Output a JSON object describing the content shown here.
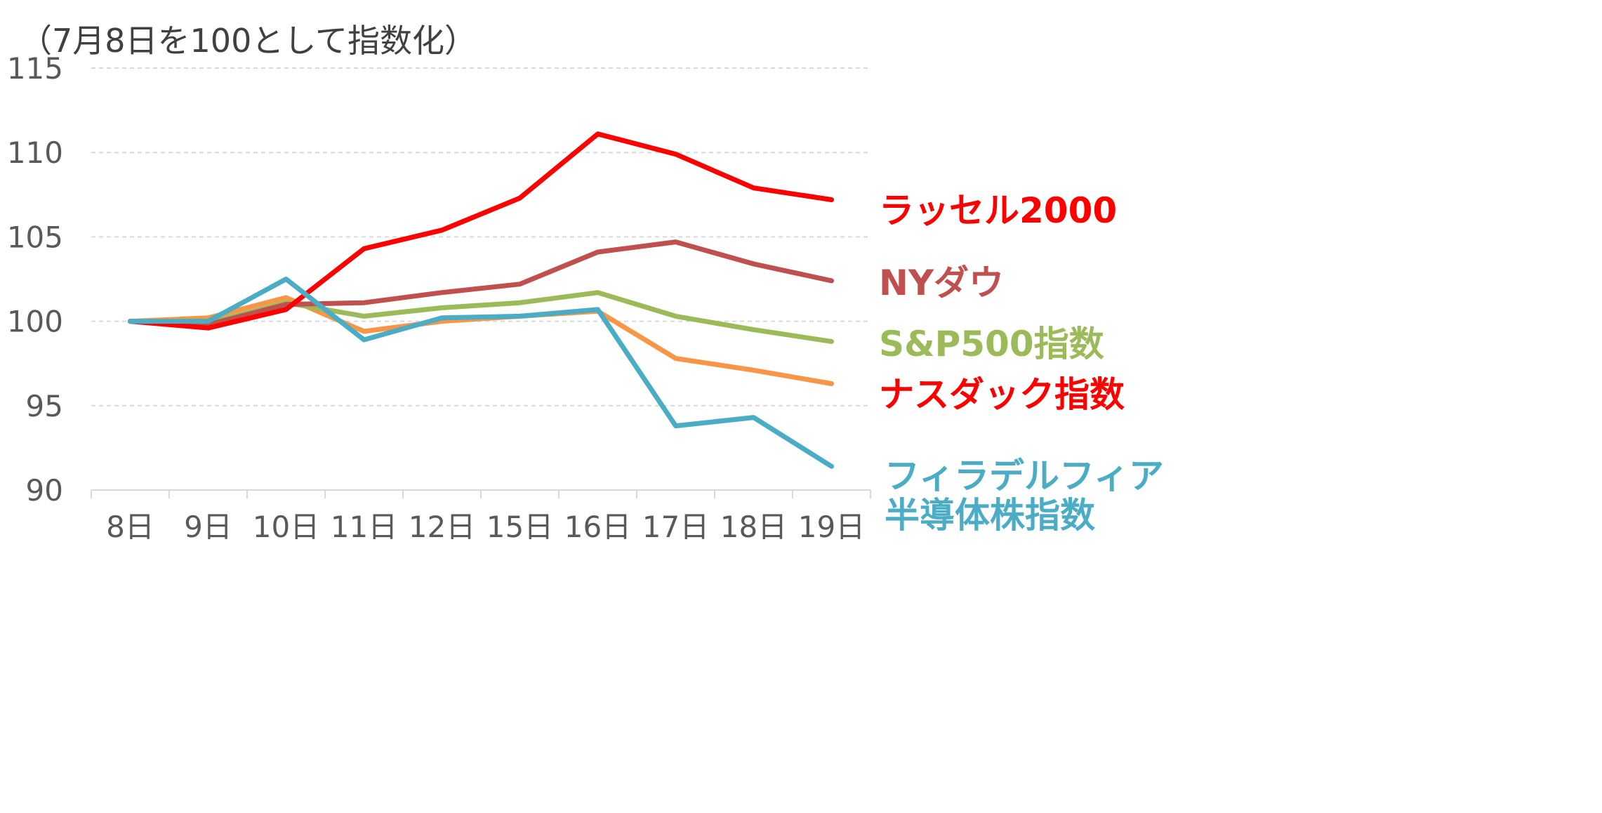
{
  "chart_data": {
    "type": "line",
    "title": "",
    "ylabel": "（7月8日を100として指数化）",
    "xlabel": "",
    "categories": [
      "8日",
      "9日",
      "10日",
      "11日",
      "12日",
      "15日",
      "16日",
      "17日",
      "18日",
      "19日"
    ],
    "ylim": [
      90,
      115
    ],
    "yticks": [
      90,
      95,
      100,
      105,
      110,
      115
    ],
    "grid": true,
    "series": [
      {
        "name": "ラッセル2000",
        "label_lines": [
          "ラッセル2000"
        ],
        "color": "#ff0000",
        "label_color": "#ff0000",
        "values": [
          100,
          99.6,
          100.7,
          104.3,
          105.4,
          107.3,
          111.1,
          109.9,
          107.9,
          107.2
        ]
      },
      {
        "name": "NYダウ",
        "label_lines": [
          "NYダウ"
        ],
        "color": "#c0504d",
        "label_color": "#c0504d",
        "values": [
          100,
          99.8,
          101.0,
          101.1,
          101.7,
          102.2,
          104.1,
          104.7,
          103.4,
          102.4
        ]
      },
      {
        "name": "S&P500指数",
        "label_lines": [
          "S&P500指数"
        ],
        "color": "#9bbb59",
        "label_color": "#9bbb59",
        "values": [
          100,
          99.9,
          101.1,
          100.3,
          100.8,
          101.1,
          101.7,
          100.3,
          99.5,
          98.8
        ]
      },
      {
        "name": "ナスダック指数",
        "label_lines": [
          "ナスダック指数"
        ],
        "color": "#f79646",
        "label_color": "#ff0000",
        "values": [
          100,
          100.2,
          101.4,
          99.4,
          100.0,
          100.3,
          100.6,
          97.8,
          97.1,
          96.3
        ]
      },
      {
        "name": "フィラデルフィア半導体株指数",
        "label_lines": [
          "フィラデルフィア",
          "半導体株指数"
        ],
        "color": "#4bacc6",
        "label_color": "#4bacc6",
        "values": [
          100,
          100.0,
          102.5,
          98.9,
          100.2,
          100.3,
          100.7,
          93.8,
          94.3,
          91.4
        ]
      }
    ]
  }
}
